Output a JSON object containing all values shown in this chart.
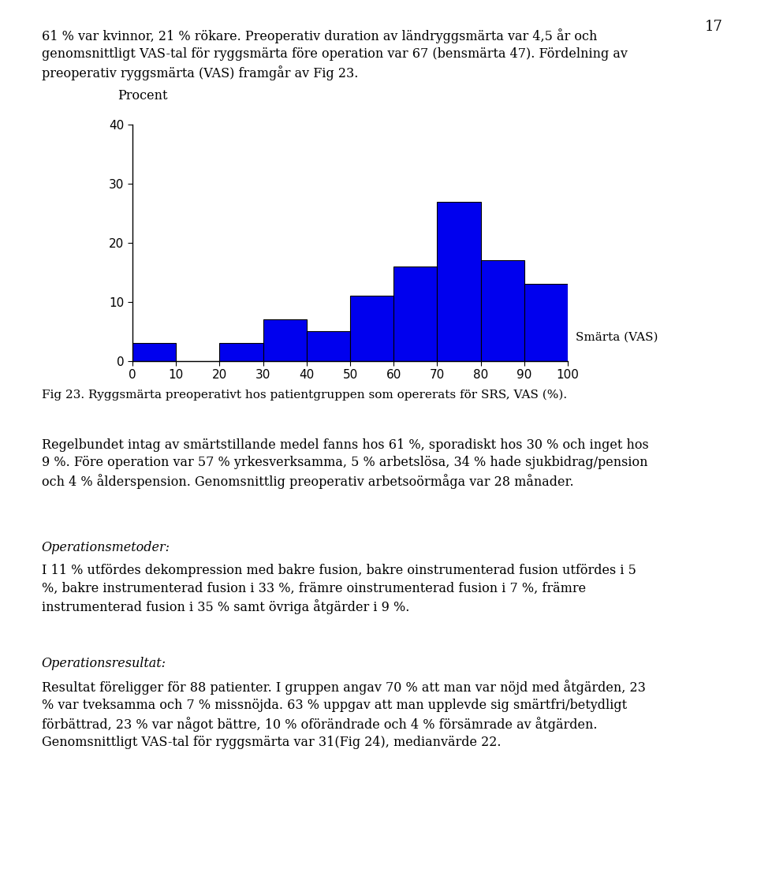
{
  "bar_values": [
    3,
    0,
    3,
    7,
    5,
    11,
    16,
    27,
    17,
    13
  ],
  "bar_edges": [
    0,
    10,
    20,
    30,
    40,
    50,
    60,
    70,
    80,
    90,
    100
  ],
  "bar_color": "#0000EE",
  "bar_edgecolor": "#000000",
  "ylabel": "Procent",
  "xlabel_annotation": "Smärta (VAS)",
  "ylim": [
    0,
    40
  ],
  "yticks": [
    0,
    10,
    20,
    30,
    40
  ],
  "xticks": [
    0,
    10,
    20,
    30,
    40,
    50,
    60,
    70,
    80,
    90,
    100
  ],
  "fig_caption": "Fig 23. Ryggsmärta preoperativt hos patientgruppen som opererats för SRS, VAS (%).",
  "title_page": "17",
  "text_block_1": "61 % var kvinnor, 21 % rökare. Preoperativ duration av ländryggsmärta var 4,5 år och\ngenomsnittligt VAS-tal för ryggsmärta före operation var 67 (bensmärta 47). Fördelning av\npreoperativ ryggsmärta (VAS) framgår av Fig 23.",
  "text_block_2_line1": "Regelbundet intag av smärtstillande medel fanns hos 61 %, sporadiskt hos 30 % och inget hos",
  "text_block_2_line2": "9 %. Före operation var 57 % yrkesverksamma, 5 % arbetslösa, 34 % hade sjukbidrag/pension",
  "text_block_2_line3": "och 4 % ålderspension. Genomsnittlig preoperativ arbetsoörmåga var 28 månader.",
  "text_block_3_title": "Operationsmetoder:",
  "text_block_3_body": "I 11 % utfördes dekompression med bakre fusion, bakre oinstrumenterad fusion utfördes i 5\n%, bakre instrumenterad fusion i 33 %, främre oinstrumenterad fusion i 7 %, främre\ninstrumenterad fusion i 35 % samt övriga åtgärder i 9 %.",
  "text_block_4_title": "Operationsresultat:",
  "text_block_4_body": "Resultat föreligger för 88 patienter. I gruppen angav 70 % att man var nöjd med åtgärden, 23\n% var tveksamma och 7 % missnöjda. 63 % uppgav att man upplevde sig smärtfri/betydligt\nförbättrad, 23 % var något bättre, 10 % oförändrade och 4 % försämrade av åtgärden.\nGenomsnittligt VAS-tal för ryggsmärta var 31(Fig 24), medianvärde 22.",
  "font_size": 11.5,
  "font_size_small": 11
}
